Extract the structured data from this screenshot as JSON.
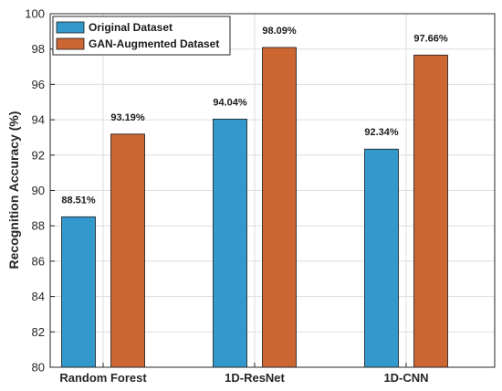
{
  "chart_data": {
    "type": "bar",
    "categories": [
      "Random Forest",
      "1D-ResNet",
      "1D-CNN"
    ],
    "series": [
      {
        "name": "Original Dataset",
        "values": [
          88.51,
          94.04,
          92.34
        ],
        "labels": [
          "88.51%",
          "94.04%",
          "92.34%"
        ],
        "color": "#3399cc"
      },
      {
        "name": "GAN-Augmented Dataset",
        "values": [
          93.19,
          98.09,
          97.66
        ],
        "labels": [
          "93.19%",
          "98.09%",
          "97.66%"
        ],
        "color": "#cc6633"
      }
    ],
    "title": "",
    "xlabel": "",
    "ylabel": "Recognition Accuracy (%)",
    "ylim": [
      80,
      100
    ],
    "yticks": [
      80,
      82,
      84,
      86,
      88,
      90,
      92,
      94,
      96,
      98,
      100
    ],
    "ytick_labels": [
      "80",
      "82",
      "84",
      "86",
      "88",
      "90",
      "92",
      "94",
      "96",
      "98",
      "100"
    ],
    "grid": true,
    "legend_position": "top-left"
  }
}
